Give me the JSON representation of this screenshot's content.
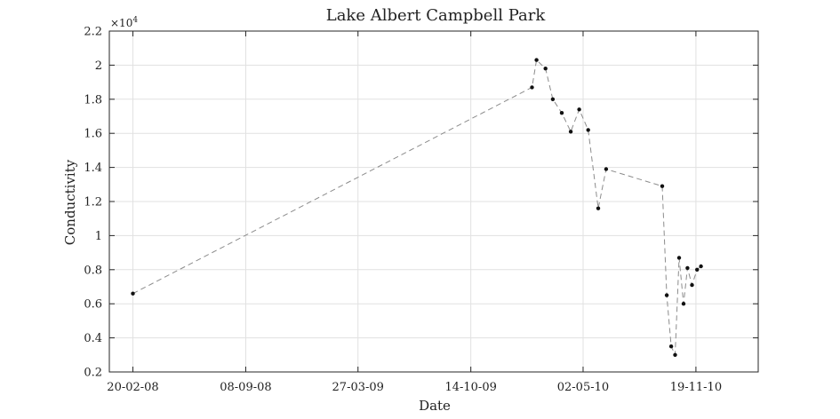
{
  "chart_data": {
    "type": "line",
    "title": "Lake Albert Campbell Park",
    "xlabel": "Date",
    "ylabel": "Conductivity",
    "y_exponent_label": "×10",
    "y_exponent_power": "4",
    "y_scale": 10000,
    "ylim": [
      2000,
      22000
    ],
    "y_ticks": [
      2000,
      4000,
      6000,
      8000,
      10000,
      12000,
      14000,
      16000,
      18000,
      20000,
      22000
    ],
    "y_tick_labels": [
      "0.2",
      "0.4",
      "0.6",
      "0.8",
      "1",
      "1.2",
      "1.4",
      "1.6",
      "1.8",
      "2",
      "2.2"
    ],
    "xlim": [
      "2008-01-09",
      "2011-03-10"
    ],
    "x_ticks": [
      "2008-02-20",
      "2008-09-08",
      "2009-03-27",
      "2009-10-14",
      "2010-05-02",
      "2010-11-19"
    ],
    "x_tick_labels": [
      "20-02-08",
      "08-09-08",
      "27-03-09",
      "14-10-09",
      "02-05-10",
      "19-11-10"
    ],
    "grid": true,
    "series": [
      {
        "name": "Conductivity",
        "line_style": "dashed",
        "line_color": "#8c8c8c",
        "marker_color": "#111111",
        "x": [
          "2008-02-20",
          "2010-01-31",
          "2010-02-08",
          "2010-02-24",
          "2010-03-09",
          "2010-03-25",
          "2010-04-10",
          "2010-04-25",
          "2010-05-11",
          "2010-05-29",
          "2010-06-12",
          "2010-09-20",
          "2010-09-28",
          "2010-10-06",
          "2010-10-13",
          "2010-10-20",
          "2010-10-28",
          "2010-11-04",
          "2010-11-12",
          "2010-11-21",
          "2010-11-28"
        ],
        "y": [
          6600,
          18700,
          20300,
          19800,
          18000,
          17200,
          16100,
          17400,
          16200,
          11600,
          13900,
          12900,
          6500,
          3500,
          3000,
          8700,
          6000,
          8100,
          7100,
          8000,
          8200
        ]
      }
    ]
  }
}
